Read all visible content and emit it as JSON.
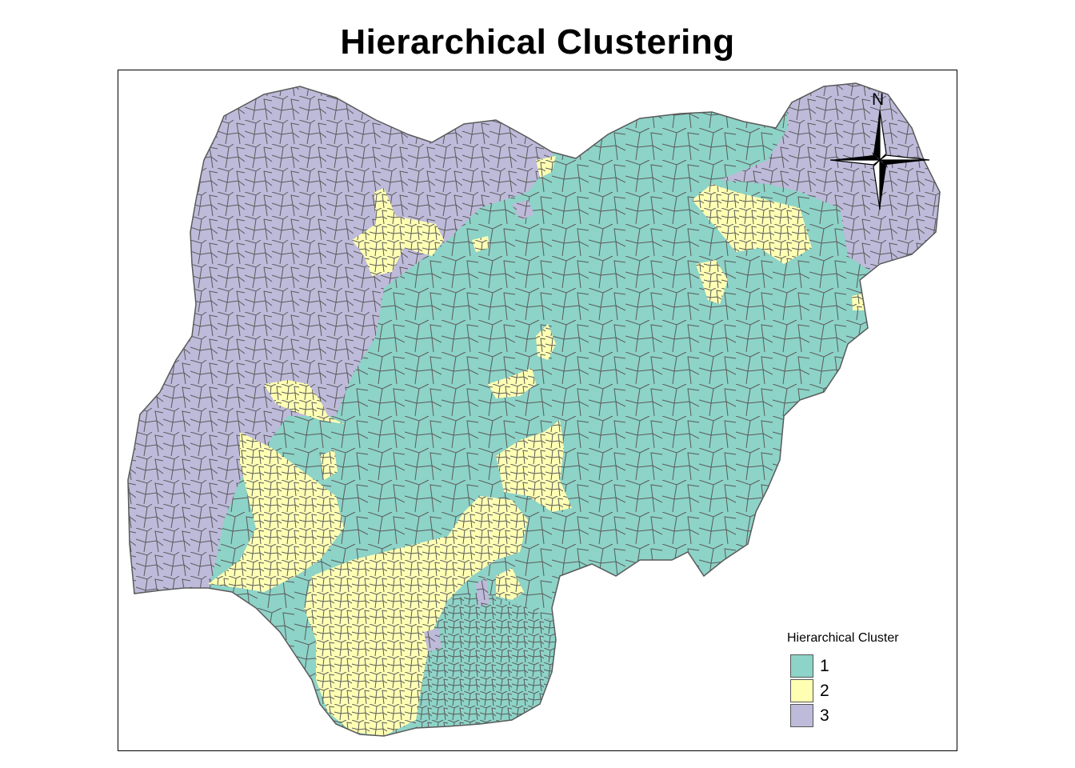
{
  "title": "Hierarchical Clustering",
  "colors": {
    "cluster_1": "#8dd3c7",
    "cluster_2": "#ffffb3",
    "cluster_3": "#bebada",
    "boundary": "#5a5a5a"
  },
  "legend": {
    "title": "Hierarchical Cluster",
    "items": [
      {
        "label": "1",
        "color": "#8dd3c7"
      },
      {
        "label": "2",
        "color": "#ffffb3"
      },
      {
        "label": "3",
        "color": "#bebada"
      }
    ]
  },
  "north_arrow": {
    "label": "N",
    "icon": "compass-rose-icon"
  }
}
